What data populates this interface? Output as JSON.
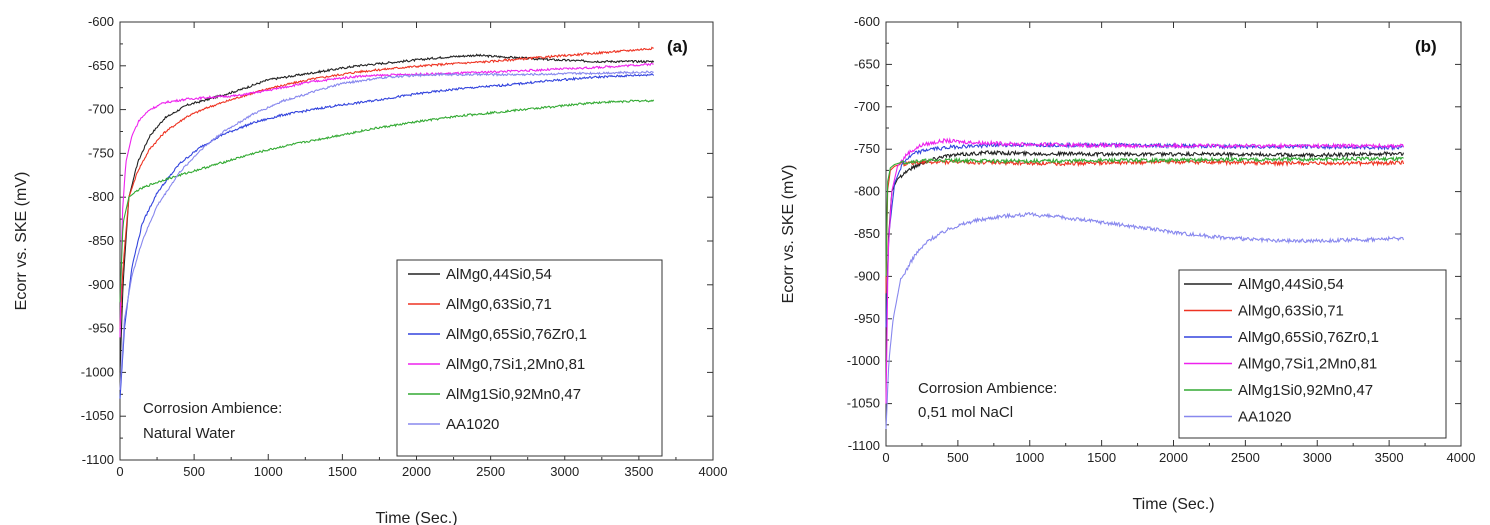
{
  "chart_data": [
    {
      "type": "line",
      "panel_label": "(a)",
      "xlabel": "Time (Sec.)",
      "ylabel": "Ecorr vs. SKE (mV)",
      "xlim": [
        0,
        4000
      ],
      "ylim": [
        -1100,
        -600
      ],
      "xticks": [
        0,
        500,
        1000,
        1500,
        2000,
        2500,
        3000,
        3500,
        4000
      ],
      "yticks": [
        -1100,
        -1050,
        -1000,
        -950,
        -900,
        -850,
        -800,
        -750,
        -700,
        -650,
        -600
      ],
      "annotation": [
        "Corrosion Ambience:",
        "Natural Water"
      ],
      "legend_position": "bottom-right",
      "grid": false,
      "series": [
        {
          "name": "AlMg0,44Si0,54",
          "color": "#222222",
          "x": [
            0,
            20,
            60,
            120,
            200,
            300,
            450,
            600,
            800,
            1000,
            1300,
            1600,
            1900,
            2200,
            2400,
            2600,
            2900,
            3200,
            3600
          ],
          "y": [
            -1000,
            -900,
            -800,
            -760,
            -730,
            -710,
            -695,
            -688,
            -678,
            -666,
            -658,
            -650,
            -645,
            -640,
            -638,
            -640,
            -643,
            -645,
            -645
          ]
        },
        {
          "name": "AlMg0,63Si0,71",
          "color": "#ee3322",
          "x": [
            0,
            20,
            60,
            120,
            200,
            300,
            450,
            600,
            800,
            1000,
            1300,
            1600,
            1900,
            2200,
            2500,
            2800,
            3100,
            3400,
            3600
          ],
          "y": [
            -950,
            -880,
            -800,
            -770,
            -745,
            -726,
            -708,
            -697,
            -686,
            -676,
            -665,
            -657,
            -652,
            -648,
            -645,
            -641,
            -637,
            -633,
            -630
          ]
        },
        {
          "name": "AlMg0,65Si0,76Zr0,1",
          "color": "#3344dd",
          "x": [
            0,
            30,
            80,
            150,
            250,
            400,
            550,
            700,
            900,
            1100,
            1400,
            1700,
            2000,
            2300,
            2600,
            2900,
            3200,
            3600
          ],
          "y": [
            -1030,
            -950,
            -880,
            -830,
            -795,
            -762,
            -742,
            -728,
            -715,
            -706,
            -697,
            -690,
            -682,
            -676,
            -672,
            -667,
            -663,
            -660
          ]
        },
        {
          "name": "AlMg0,7Si1,2Mn0,81",
          "color": "#ee22ee",
          "x": [
            0,
            15,
            40,
            80,
            130,
            200,
            300,
            450,
            600,
            800,
            1000,
            1300,
            1600,
            1900,
            2200,
            2500,
            2800,
            3200,
            3600
          ],
          "y": [
            -960,
            -820,
            -760,
            -730,
            -712,
            -700,
            -692,
            -688,
            -686,
            -684,
            -678,
            -668,
            -662,
            -660,
            -659,
            -657,
            -655,
            -652,
            -648
          ]
        },
        {
          "name": "AlMg1Si0,92Mn0,47",
          "color": "#33aa33",
          "x": [
            0,
            20,
            60,
            120,
            200,
            300,
            500,
            700,
            900,
            1100,
            1400,
            1700,
            2000,
            2300,
            2600,
            2900,
            3200,
            3500,
            3600
          ],
          "y": [
            -920,
            -830,
            -800,
            -792,
            -786,
            -780,
            -770,
            -760,
            -750,
            -742,
            -732,
            -722,
            -714,
            -707,
            -702,
            -697,
            -692,
            -690,
            -690
          ]
        },
        {
          "name": "AA1020",
          "color": "#8888ee",
          "x": [
            0,
            30,
            80,
            150,
            250,
            400,
            550,
            700,
            900,
            1100,
            1300,
            1500,
            1800,
            2100,
            2400,
            2700,
            3000,
            3300,
            3600
          ],
          "y": [
            -1020,
            -940,
            -890,
            -850,
            -810,
            -772,
            -745,
            -725,
            -705,
            -690,
            -680,
            -670,
            -663,
            -660,
            -660,
            -660,
            -659,
            -658,
            -657
          ]
        }
      ]
    },
    {
      "type": "line",
      "panel_label": "(b)",
      "xlabel": "Time (Sec.)",
      "ylabel": "Ecorr vs. SKE (mV)",
      "xlim": [
        0,
        4000
      ],
      "ylim": [
        -1100,
        -600
      ],
      "xticks": [
        0,
        500,
        1000,
        1500,
        2000,
        2500,
        3000,
        3500,
        4000
      ],
      "yticks": [
        -1100,
        -1050,
        -1000,
        -950,
        -900,
        -850,
        -800,
        -750,
        -700,
        -650,
        -600
      ],
      "annotation": [
        "Corrosion Ambience:",
        "0,51 mol NaCl"
      ],
      "legend_position": "bottom-right",
      "grid": false,
      "series": [
        {
          "name": "AlMg0,44Si0,54",
          "color": "#222222",
          "x": [
            0,
            15,
            40,
            80,
            150,
            250,
            400,
            700,
            1000,
            1500,
            2000,
            2500,
            3000,
            3600
          ],
          "y": [
            -1000,
            -860,
            -800,
            -785,
            -775,
            -766,
            -758,
            -754,
            -755,
            -756,
            -756,
            -756,
            -757,
            -755
          ]
        },
        {
          "name": "AlMg0,63Si0,71",
          "color": "#ee3322",
          "x": [
            0,
            10,
            30,
            60,
            100,
            200,
            400,
            800,
            1200,
            1600,
            2000,
            2500,
            3000,
            3600
          ],
          "y": [
            -920,
            -800,
            -775,
            -770,
            -768,
            -766,
            -765,
            -766,
            -767,
            -766,
            -765,
            -766,
            -767,
            -766
          ]
        },
        {
          "name": "AlMg0,65Si0,76Zr0,1",
          "color": "#3344dd",
          "x": [
            0,
            20,
            60,
            120,
            200,
            300,
            500,
            800,
            1200,
            1600,
            2000,
            2500,
            3000,
            3600
          ],
          "y": [
            -960,
            -850,
            -790,
            -765,
            -755,
            -750,
            -747,
            -745,
            -745,
            -745,
            -746,
            -747,
            -747,
            -748
          ]
        },
        {
          "name": "AlMg0,7Si1,2Mn0,81",
          "color": "#ee22ee",
          "x": [
            0,
            15,
            40,
            80,
            150,
            250,
            400,
            600,
            900,
            1300,
            1700,
            2200,
            2700,
            3200,
            3600
          ],
          "y": [
            -1050,
            -870,
            -800,
            -770,
            -755,
            -745,
            -740,
            -742,
            -744,
            -745,
            -746,
            -746,
            -746,
            -746,
            -746
          ]
        },
        {
          "name": "AlMg1Si0,92Mn0,47",
          "color": "#33aa33",
          "x": [
            0,
            10,
            30,
            60,
            100,
            200,
            400,
            800,
            1200,
            1600,
            2000,
            2500,
            3000,
            3600
          ],
          "y": [
            -900,
            -790,
            -772,
            -768,
            -766,
            -764,
            -763,
            -764,
            -764,
            -763,
            -763,
            -762,
            -762,
            -761
          ]
        },
        {
          "name": "AA1020",
          "color": "#8888ee",
          "x": [
            0,
            20,
            50,
            100,
            200,
            300,
            450,
            600,
            800,
            1000,
            1200,
            1500,
            1800,
            2100,
            2400,
            2700,
            3000,
            3300,
            3600
          ],
          "y": [
            -1080,
            -1000,
            -950,
            -905,
            -875,
            -857,
            -843,
            -835,
            -829,
            -827,
            -830,
            -836,
            -843,
            -850,
            -855,
            -858,
            -858,
            -857,
            -855
          ]
        }
      ]
    }
  ]
}
